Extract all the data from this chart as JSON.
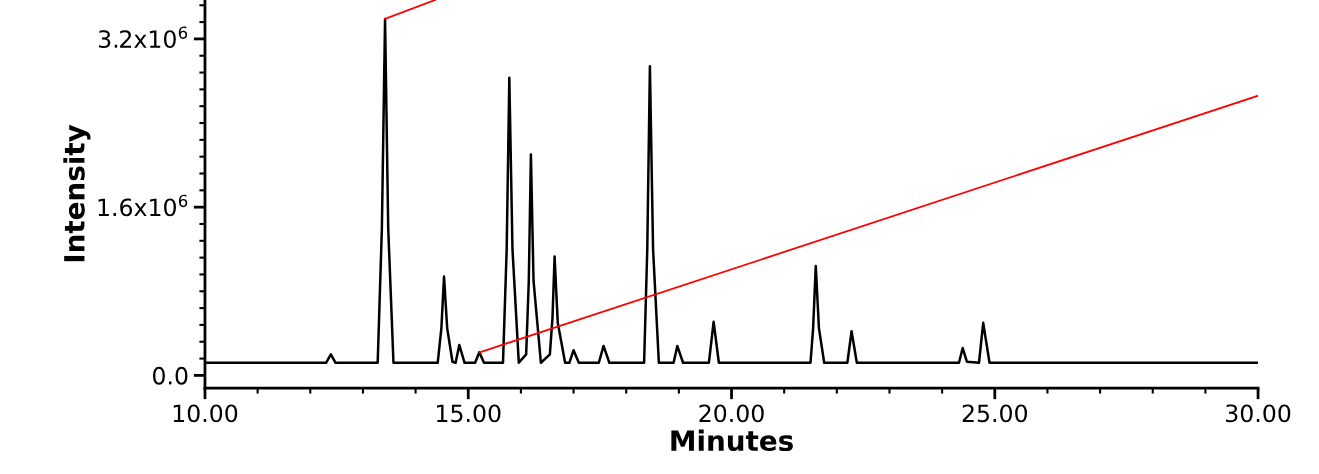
{
  "chart_data": {
    "type": "line",
    "xlabel": "Minutes",
    "ylabel": "Intensity",
    "xlim": [
      10,
      30
    ],
    "ylim": [
      -120000,
      3570000
    ],
    "xticks": [
      {
        "value": 10,
        "label": "10.00"
      },
      {
        "value": 11,
        "label": null
      },
      {
        "value": 12,
        "label": null
      },
      {
        "value": 13,
        "label": null
      },
      {
        "value": 14,
        "label": null
      },
      {
        "value": 15,
        "label": "15.00"
      },
      {
        "value": 16,
        "label": null
      },
      {
        "value": 17,
        "label": null
      },
      {
        "value": 18,
        "label": null
      },
      {
        "value": 19,
        "label": null
      },
      {
        "value": 20,
        "label": "20.00"
      },
      {
        "value": 21,
        "label": null
      },
      {
        "value": 22,
        "label": null
      },
      {
        "value": 23,
        "label": null
      },
      {
        "value": 24,
        "label": null
      },
      {
        "value": 25,
        "label": "25.00"
      },
      {
        "value": 26,
        "label": null
      },
      {
        "value": 27,
        "label": null
      },
      {
        "value": 28,
        "label": null
      },
      {
        "value": 29,
        "label": null
      },
      {
        "value": 30,
        "label": "30.00"
      }
    ],
    "yticks": [
      {
        "value": 0,
        "label": "0.0"
      },
      {
        "value": 160000,
        "label": null
      },
      {
        "value": 320000,
        "label": null
      },
      {
        "value": 480000,
        "label": null
      },
      {
        "value": 640000,
        "label": null
      },
      {
        "value": 800000,
        "label": null
      },
      {
        "value": 960000,
        "label": null
      },
      {
        "value": 1120000,
        "label": null
      },
      {
        "value": 1280000,
        "label": null
      },
      {
        "value": 1440000,
        "label": null
      },
      {
        "value": 1600000,
        "label": "1.6x10$^{6}$"
      },
      {
        "value": 1760000,
        "label": null
      },
      {
        "value": 1920000,
        "label": null
      },
      {
        "value": 2080000,
        "label": null
      },
      {
        "value": 2240000,
        "label": null
      },
      {
        "value": 2400000,
        "label": null
      },
      {
        "value": 2560000,
        "label": null
      },
      {
        "value": 2720000,
        "label": null
      },
      {
        "value": 2880000,
        "label": null
      },
      {
        "value": 3040000,
        "label": null
      },
      {
        "value": 3200000,
        "label": "3.2x10$^{6}$"
      },
      {
        "value": 3360000,
        "label": null
      },
      {
        "value": 3520000,
        "label": null
      }
    ],
    "grid": false,
    "line_style": "solid",
    "series": [
      {
        "color": "#000000",
        "x": [
          10.0,
          12.3,
          12.39,
          12.48,
          13.28,
          13.36,
          13.42,
          13.48,
          13.58,
          14.42,
          14.49,
          14.54,
          14.6,
          14.7,
          14.76,
          14.83,
          14.93,
          15.13,
          15.21,
          15.3,
          15.66,
          15.73,
          15.78,
          15.84,
          15.96,
          16.1,
          16.15,
          16.19,
          16.24,
          16.38,
          16.55,
          16.6,
          16.64,
          16.7,
          16.84,
          16.92,
          17.0,
          17.1,
          17.48,
          17.57,
          17.68,
          18.34,
          18.4,
          18.45,
          18.51,
          18.62,
          18.9,
          18.97,
          19.08,
          19.57,
          19.66,
          19.76,
          21.5,
          21.55,
          21.6,
          21.66,
          21.76,
          22.2,
          22.28,
          22.38,
          24.32,
          24.39,
          24.47,
          24.7,
          24.78,
          24.9,
          30.0
        ],
        "values": [
          120000,
          120000,
          200000,
          120000,
          120000,
          1400000,
          3390000,
          1400000,
          120000,
          120000,
          450000,
          940000,
          450000,
          130000,
          120000,
          290000,
          120000,
          120000,
          220000,
          120000,
          120000,
          1200000,
          2830000,
          1200000,
          120000,
          200000,
          900000,
          2100000,
          900000,
          120000,
          200000,
          550000,
          1130000,
          500000,
          120000,
          120000,
          240000,
          120000,
          120000,
          280000,
          120000,
          120000,
          1200000,
          2940000,
          1200000,
          120000,
          120000,
          280000,
          120000,
          120000,
          510000,
          120000,
          120000,
          450000,
          1040000,
          450000,
          120000,
          120000,
          420000,
          120000,
          120000,
          260000,
          130000,
          120000,
          500000,
          120000,
          120000
        ]
      },
      {
        "color": "#ff0000",
        "x": [
          13.42,
          14.37
        ],
        "values": [
          3390000,
          3570000
        ]
      },
      {
        "color": "#ff0000",
        "x": [
          15.22,
          30.0
        ],
        "values": [
          220000,
          2660000
        ]
      }
    ]
  }
}
